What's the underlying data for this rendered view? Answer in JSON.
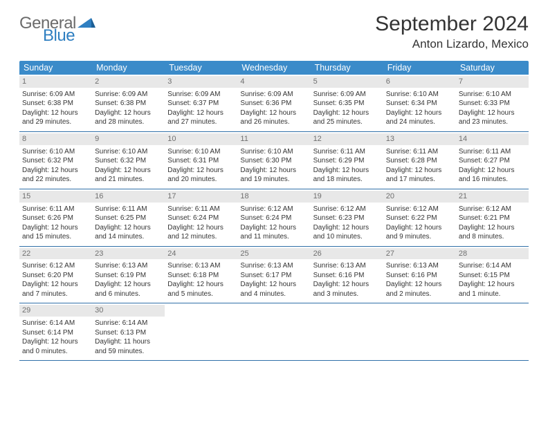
{
  "colors": {
    "header_bg": "#3b8bc9",
    "header_text": "#ffffff",
    "daynum_bg": "#e8e8e8",
    "daynum_text": "#6f6f6f",
    "rule": "#2f6fa8",
    "logo_gray": "#6b6b6b",
    "logo_blue": "#2f7fc1",
    "body_text": "#333333",
    "page_bg": "#ffffff"
  },
  "typography": {
    "title_fontsize": 30,
    "subtitle_fontsize": 17,
    "dow_fontsize": 12.5,
    "cell_fontsize": 10,
    "daynum_fontsize": 11,
    "family": "Arial"
  },
  "logo": {
    "general": "General",
    "blue": "Blue"
  },
  "title": "September 2024",
  "subtitle": "Anton Lizardo, Mexico",
  "dow": [
    "Sunday",
    "Monday",
    "Tuesday",
    "Wednesday",
    "Thursday",
    "Friday",
    "Saturday"
  ],
  "weeks": [
    [
      {
        "n": "1",
        "sr": "Sunrise: 6:09 AM",
        "ss": "Sunset: 6:38 PM",
        "d1": "Daylight: 12 hours",
        "d2": "and 29 minutes."
      },
      {
        "n": "2",
        "sr": "Sunrise: 6:09 AM",
        "ss": "Sunset: 6:38 PM",
        "d1": "Daylight: 12 hours",
        "d2": "and 28 minutes."
      },
      {
        "n": "3",
        "sr": "Sunrise: 6:09 AM",
        "ss": "Sunset: 6:37 PM",
        "d1": "Daylight: 12 hours",
        "d2": "and 27 minutes."
      },
      {
        "n": "4",
        "sr": "Sunrise: 6:09 AM",
        "ss": "Sunset: 6:36 PM",
        "d1": "Daylight: 12 hours",
        "d2": "and 26 minutes."
      },
      {
        "n": "5",
        "sr": "Sunrise: 6:09 AM",
        "ss": "Sunset: 6:35 PM",
        "d1": "Daylight: 12 hours",
        "d2": "and 25 minutes."
      },
      {
        "n": "6",
        "sr": "Sunrise: 6:10 AM",
        "ss": "Sunset: 6:34 PM",
        "d1": "Daylight: 12 hours",
        "d2": "and 24 minutes."
      },
      {
        "n": "7",
        "sr": "Sunrise: 6:10 AM",
        "ss": "Sunset: 6:33 PM",
        "d1": "Daylight: 12 hours",
        "d2": "and 23 minutes."
      }
    ],
    [
      {
        "n": "8",
        "sr": "Sunrise: 6:10 AM",
        "ss": "Sunset: 6:32 PM",
        "d1": "Daylight: 12 hours",
        "d2": "and 22 minutes."
      },
      {
        "n": "9",
        "sr": "Sunrise: 6:10 AM",
        "ss": "Sunset: 6:32 PM",
        "d1": "Daylight: 12 hours",
        "d2": "and 21 minutes."
      },
      {
        "n": "10",
        "sr": "Sunrise: 6:10 AM",
        "ss": "Sunset: 6:31 PM",
        "d1": "Daylight: 12 hours",
        "d2": "and 20 minutes."
      },
      {
        "n": "11",
        "sr": "Sunrise: 6:10 AM",
        "ss": "Sunset: 6:30 PM",
        "d1": "Daylight: 12 hours",
        "d2": "and 19 minutes."
      },
      {
        "n": "12",
        "sr": "Sunrise: 6:11 AM",
        "ss": "Sunset: 6:29 PM",
        "d1": "Daylight: 12 hours",
        "d2": "and 18 minutes."
      },
      {
        "n": "13",
        "sr": "Sunrise: 6:11 AM",
        "ss": "Sunset: 6:28 PM",
        "d1": "Daylight: 12 hours",
        "d2": "and 17 minutes."
      },
      {
        "n": "14",
        "sr": "Sunrise: 6:11 AM",
        "ss": "Sunset: 6:27 PM",
        "d1": "Daylight: 12 hours",
        "d2": "and 16 minutes."
      }
    ],
    [
      {
        "n": "15",
        "sr": "Sunrise: 6:11 AM",
        "ss": "Sunset: 6:26 PM",
        "d1": "Daylight: 12 hours",
        "d2": "and 15 minutes."
      },
      {
        "n": "16",
        "sr": "Sunrise: 6:11 AM",
        "ss": "Sunset: 6:25 PM",
        "d1": "Daylight: 12 hours",
        "d2": "and 14 minutes."
      },
      {
        "n": "17",
        "sr": "Sunrise: 6:11 AM",
        "ss": "Sunset: 6:24 PM",
        "d1": "Daylight: 12 hours",
        "d2": "and 12 minutes."
      },
      {
        "n": "18",
        "sr": "Sunrise: 6:12 AM",
        "ss": "Sunset: 6:24 PM",
        "d1": "Daylight: 12 hours",
        "d2": "and 11 minutes."
      },
      {
        "n": "19",
        "sr": "Sunrise: 6:12 AM",
        "ss": "Sunset: 6:23 PM",
        "d1": "Daylight: 12 hours",
        "d2": "and 10 minutes."
      },
      {
        "n": "20",
        "sr": "Sunrise: 6:12 AM",
        "ss": "Sunset: 6:22 PM",
        "d1": "Daylight: 12 hours",
        "d2": "and 9 minutes."
      },
      {
        "n": "21",
        "sr": "Sunrise: 6:12 AM",
        "ss": "Sunset: 6:21 PM",
        "d1": "Daylight: 12 hours",
        "d2": "and 8 minutes."
      }
    ],
    [
      {
        "n": "22",
        "sr": "Sunrise: 6:12 AM",
        "ss": "Sunset: 6:20 PM",
        "d1": "Daylight: 12 hours",
        "d2": "and 7 minutes."
      },
      {
        "n": "23",
        "sr": "Sunrise: 6:13 AM",
        "ss": "Sunset: 6:19 PM",
        "d1": "Daylight: 12 hours",
        "d2": "and 6 minutes."
      },
      {
        "n": "24",
        "sr": "Sunrise: 6:13 AM",
        "ss": "Sunset: 6:18 PM",
        "d1": "Daylight: 12 hours",
        "d2": "and 5 minutes."
      },
      {
        "n": "25",
        "sr": "Sunrise: 6:13 AM",
        "ss": "Sunset: 6:17 PM",
        "d1": "Daylight: 12 hours",
        "d2": "and 4 minutes."
      },
      {
        "n": "26",
        "sr": "Sunrise: 6:13 AM",
        "ss": "Sunset: 6:16 PM",
        "d1": "Daylight: 12 hours",
        "d2": "and 3 minutes."
      },
      {
        "n": "27",
        "sr": "Sunrise: 6:13 AM",
        "ss": "Sunset: 6:16 PM",
        "d1": "Daylight: 12 hours",
        "d2": "and 2 minutes."
      },
      {
        "n": "28",
        "sr": "Sunrise: 6:14 AM",
        "ss": "Sunset: 6:15 PM",
        "d1": "Daylight: 12 hours",
        "d2": "and 1 minute."
      }
    ],
    [
      {
        "n": "29",
        "sr": "Sunrise: 6:14 AM",
        "ss": "Sunset: 6:14 PM",
        "d1": "Daylight: 12 hours",
        "d2": "and 0 minutes."
      },
      {
        "n": "30",
        "sr": "Sunrise: 6:14 AM",
        "ss": "Sunset: 6:13 PM",
        "d1": "Daylight: 11 hours",
        "d2": "and 59 minutes."
      },
      {
        "empty": true
      },
      {
        "empty": true
      },
      {
        "empty": true
      },
      {
        "empty": true
      },
      {
        "empty": true
      }
    ]
  ]
}
